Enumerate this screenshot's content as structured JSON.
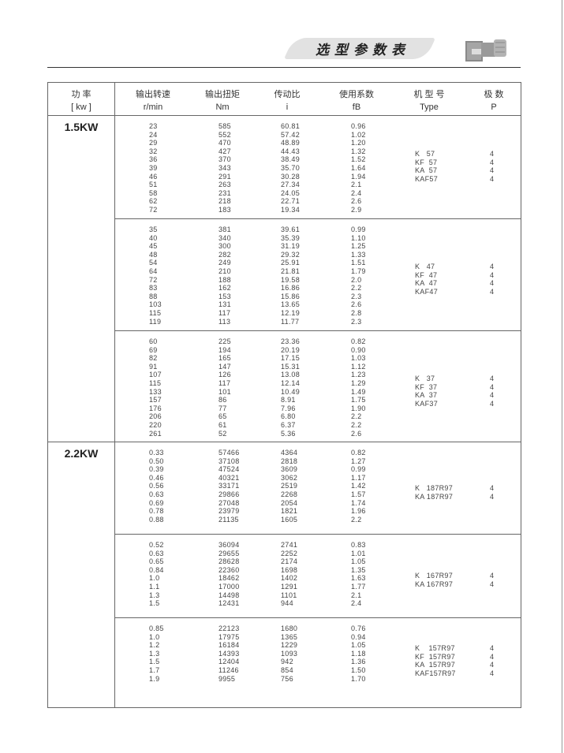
{
  "header": {
    "title": "选型参数表",
    "icon": "gear-motor-image"
  },
  "table": {
    "columns": [
      {
        "zh": "功 率",
        "unit": "[ kw ]"
      },
      {
        "zh": "输出转速",
        "unit": "r/min"
      },
      {
        "zh": "输出扭矩",
        "unit": "Nm"
      },
      {
        "zh": "传动比",
        "unit": "i"
      },
      {
        "zh": "使用系数",
        "unit": "fB"
      },
      {
        "zh": "机 型 号",
        "unit": "Type"
      },
      {
        "zh": "极  数",
        "unit": "P"
      }
    ],
    "groups": [
      {
        "power": "1.5KW",
        "sections": [
          {
            "rows": [
              [
                "23",
                "585",
                "60.81",
                "0.96"
              ],
              [
                "24",
                "552",
                "57.42",
                "1.02"
              ],
              [
                "29",
                "470",
                "48.89",
                "1.20"
              ],
              [
                "32",
                "427",
                "44.43",
                "1.32"
              ],
              [
                "36",
                "370",
                "38.49",
                "1.52"
              ],
              [
                "39",
                "343",
                "35.70",
                "1.64"
              ],
              [
                "46",
                "291",
                "30.28",
                "1.94"
              ],
              [
                "51",
                "263",
                "27.34",
                "2.1"
              ],
              [
                "58",
                "231",
                "24.05",
                "2.4"
              ],
              [
                "62",
                "218",
                "22.71",
                "2.6"
              ],
              [
                "72",
                "183",
                "19.34",
                "2.9"
              ]
            ],
            "types": [
              [
                "K   57",
                "4"
              ],
              [
                "KF  57",
                "4"
              ],
              [
                "KA  57",
                "4"
              ],
              [
                "KAF57",
                "4"
              ]
            ]
          },
          {
            "rows": [
              [
                "35",
                "381",
                "39.61",
                "0.99"
              ],
              [
                "40",
                "340",
                "35.39",
                "1.10"
              ],
              [
                "45",
                "300",
                "31.19",
                "1.25"
              ],
              [
                "48",
                "282",
                "29.32",
                "1.33"
              ],
              [
                "54",
                "249",
                "25.91",
                "1.51"
              ],
              [
                "64",
                "210",
                "21.81",
                "1.79"
              ],
              [
                "72",
                "188",
                "19.58",
                "2.0"
              ],
              [
                "83",
                "162",
                "16.86",
                "2.2"
              ],
              [
                "88",
                "153",
                "15.86",
                "2.3"
              ],
              [
                "103",
                "131",
                "13.65",
                "2.6"
              ],
              [
                "115",
                "117",
                "12.19",
                "2.8"
              ],
              [
                "119",
                "113",
                "11.77",
                "2.3"
              ]
            ],
            "types": [
              [
                "K   47",
                "4"
              ],
              [
                "KF  47",
                "4"
              ],
              [
                "KA  47",
                "4"
              ],
              [
                "KAF47",
                "4"
              ]
            ]
          },
          {
            "rows": [
              [
                "60",
                "225",
                "23.36",
                "0.82"
              ],
              [
                "69",
                "194",
                "20.19",
                "0.90"
              ],
              [
                "82",
                "165",
                "17.15",
                "1.03"
              ],
              [
                "91",
                "147",
                "15.31",
                "1.12"
              ],
              [
                "107",
                "126",
                "13.08",
                "1.23"
              ],
              [
                "115",
                "117",
                "12.14",
                "1.29"
              ],
              [
                "133",
                "101",
                "10.49",
                "1.49"
              ],
              [
                "157",
                "86",
                "8.91",
                "1.75"
              ],
              [
                "176",
                "77",
                "7.96",
                "1.90"
              ],
              [
                "206",
                "65",
                "6.80",
                "2.2"
              ],
              [
                "220",
                "61",
                "6.37",
                "2.2"
              ],
              [
                "261",
                "52",
                "5.36",
                "2.6"
              ]
            ],
            "types": [
              [
                "K   37",
                "4"
              ],
              [
                "KF  37",
                "4"
              ],
              [
                "KA  37",
                "4"
              ],
              [
                "KAF37",
                "4"
              ]
            ]
          }
        ]
      },
      {
        "power": "2.2KW",
        "sections": [
          {
            "rows": [
              [
                "0.33",
                "57466",
                "4364",
                "0.82"
              ],
              [
                "0.50",
                "37108",
                "2818",
                "1.27"
              ],
              [
                "0.39",
                "47524",
                "3609",
                "0.99"
              ],
              [
                "0.46",
                "40321",
                "3062",
                "1.17"
              ],
              [
                "0.56",
                "33171",
                "2519",
                "1.42"
              ],
              [
                "0.63",
                "29866",
                "2268",
                "1.57"
              ],
              [
                "0.69",
                "27048",
                "2054",
                "1.74"
              ],
              [
                "0.78",
                "23979",
                "1821",
                "1.96"
              ],
              [
                "0.88",
                "21135",
                "1605",
                "2.2"
              ]
            ],
            "types": [
              [
                "K   187R97",
                "4"
              ],
              [
                "KA 187R97",
                "4"
              ]
            ]
          },
          {
            "rows": [
              [
                "0.52",
                "36094",
                "2741",
                "0.83"
              ],
              [
                "0.63",
                "29655",
                "2252",
                "1.01"
              ],
              [
                "0.65",
                "28628",
                "2174",
                "1.05"
              ],
              [
                "0.84",
                "22360",
                "1698",
                "1.35"
              ],
              [
                "1.0",
                "18462",
                "1402",
                "1.63"
              ],
              [
                "1.1",
                "17000",
                "1291",
                "1.77"
              ],
              [
                "1.3",
                "14498",
                "1101",
                "2.1"
              ],
              [
                "1.5",
                "12431",
                "944",
                "2.4"
              ]
            ],
            "types": [
              [
                "K   167R97",
                "4"
              ],
              [
                "KA 167R97",
                "4"
              ]
            ]
          },
          {
            "rows": [
              [
                "0.85",
                "22123",
                "1680",
                "0.76"
              ],
              [
                "1.0",
                "17975",
                "1365",
                "0.94"
              ],
              [
                "1.2",
                "16184",
                "1229",
                "1.05"
              ],
              [
                "1.3",
                "14393",
                "1093",
                "1.18"
              ],
              [
                "1.5",
                "12404",
                "942",
                "1.36"
              ],
              [
                "1.7",
                "11246",
                "854",
                "1.50"
              ],
              [
                "1.9",
                "9955",
                "756",
                "1.70"
              ]
            ],
            "types": [
              [
                "K    157R97",
                "4"
              ],
              [
                "KF  157R97",
                "4"
              ],
              [
                "KA  157R97",
                "4"
              ],
              [
                "KAF157R97",
                "4"
              ]
            ]
          }
        ]
      }
    ]
  }
}
